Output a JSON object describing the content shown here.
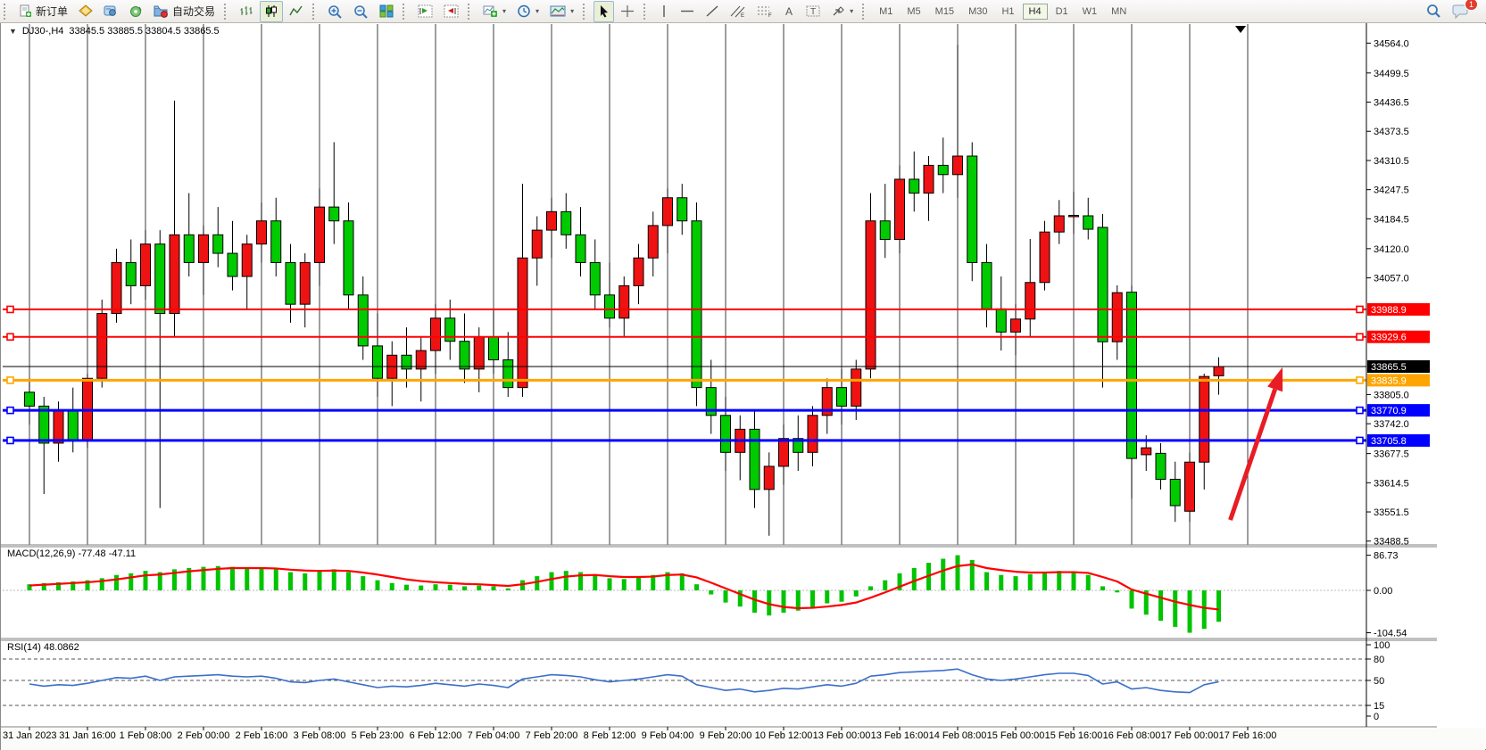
{
  "toolbar": {
    "new_order_label": "新订单",
    "auto_trading_label": "自动交易",
    "timeframes": [
      "M1",
      "M5",
      "M15",
      "M30",
      "H1",
      "H4",
      "D1",
      "W1",
      "MN"
    ],
    "active_timeframe": "H4",
    "notification_count": "1"
  },
  "chart_header": {
    "symbol_period": "DJ30-,H4",
    "ohlc": "33845.5 33885.5 33804.5 33865.5"
  },
  "chart_data": {
    "type": "candlestick",
    "symbol": "DJ30-",
    "timeframe": "H4",
    "colors": {
      "up": "#ef1212",
      "down": "#00ca00",
      "wick": "#000000",
      "grid": "#3c3c3c",
      "macd_hist": "#00c400",
      "macd_signal": "#ff0000",
      "rsi_line": "#3b6fc9",
      "arrow": "#e81c24",
      "line_red": "#ff0000",
      "line_blue": "#0000ff",
      "line_orange": "#ffa500",
      "line_black": "#000000"
    },
    "price_axis_ticks": [
      "34564.0",
      "34499.5",
      "34436.5",
      "34373.5",
      "34310.5",
      "34247.5",
      "34184.5",
      "34120.0",
      "34057.0",
      "33805.0",
      "33742.0",
      "33677.5",
      "33614.5",
      "33551.5",
      "33488.5"
    ],
    "horizontal_lines": [
      {
        "price": 33988.9,
        "label": "33988.9",
        "color": "#ff0000",
        "width": 2
      },
      {
        "price": 33929.6,
        "label": "33929.6",
        "color": "#ff0000",
        "width": 2
      },
      {
        "price": 33865.5,
        "label": "33865.5",
        "color": "#000000",
        "width": 1
      },
      {
        "price": 33835.9,
        "label": "33835.9",
        "color": "#ffa500",
        "width": 3
      },
      {
        "price": 33770.9,
        "label": "33770.9",
        "color": "#0000ff",
        "width": 3
      },
      {
        "price": 33705.8,
        "label": "33705.8",
        "color": "#0000ff",
        "width": 3
      }
    ],
    "time_labels": [
      "31 Jan 2023",
      "31 Jan 16:00",
      "1 Feb 08:00",
      "2 Feb 00:00",
      "2 Feb 16:00",
      "3 Feb 08:00",
      "5 Feb 23:00",
      "6 Feb 12:00",
      "7 Feb 04:00",
      "7 Feb 20:00",
      "8 Feb 12:00",
      "9 Feb 04:00",
      "9 Feb 20:00",
      "10 Feb 12:00",
      "13 Feb 00:00",
      "13 Feb 16:00",
      "14 Feb 08:00",
      "15 Feb 00:00",
      "15 Feb 16:00",
      "16 Feb 08:00",
      "17 Feb 00:00",
      "17 Feb 16:00"
    ],
    "candles": [
      [
        33810,
        33840,
        33740,
        33780
      ],
      [
        33780,
        33800,
        33590,
        33700
      ],
      [
        33700,
        33790,
        33660,
        33770
      ],
      [
        33770,
        33820,
        33680,
        33705
      ],
      [
        33705,
        33850,
        33690,
        33840
      ],
      [
        33840,
        34010,
        33820,
        33980
      ],
      [
        33980,
        34120,
        33960,
        34090
      ],
      [
        34090,
        34140,
        34000,
        34040
      ],
      [
        34040,
        34160,
        34010,
        34130
      ],
      [
        34130,
        34160,
        33560,
        33980
      ],
      [
        33980,
        34440,
        33930,
        34150
      ],
      [
        34150,
        34240,
        34060,
        34090
      ],
      [
        34090,
        34170,
        34020,
        34150
      ],
      [
        34150,
        34210,
        34080,
        34110
      ],
      [
        34110,
        34180,
        34030,
        34060
      ],
      [
        34060,
        34150,
        33990,
        34130
      ],
      [
        34130,
        34220,
        34090,
        34180
      ],
      [
        34180,
        34230,
        34060,
        34090
      ],
      [
        34090,
        34130,
        33960,
        34000
      ],
      [
        34000,
        34110,
        33950,
        34090
      ],
      [
        34090,
        34250,
        34040,
        34210
      ],
      [
        34210,
        34350,
        34130,
        34180
      ],
      [
        34180,
        34220,
        33990,
        34020
      ],
      [
        34020,
        34060,
        33880,
        33910
      ],
      [
        33910,
        33980,
        33800,
        33840
      ],
      [
        33840,
        33920,
        33780,
        33890
      ],
      [
        33890,
        33950,
        33820,
        33860
      ],
      [
        33860,
        33930,
        33790,
        33900
      ],
      [
        33900,
        34000,
        33850,
        33970
      ],
      [
        33970,
        34010,
        33880,
        33920
      ],
      [
        33920,
        33980,
        33830,
        33860
      ],
      [
        33860,
        33950,
        33810,
        33930
      ],
      [
        33930,
        33990,
        33850,
        33880
      ],
      [
        33880,
        33940,
        33800,
        33820
      ],
      [
        33820,
        34260,
        33800,
        34100
      ],
      [
        34100,
        34190,
        34040,
        34160
      ],
      [
        34160,
        34230,
        34100,
        34200
      ],
      [
        34200,
        34240,
        34120,
        34150
      ],
      [
        34150,
        34210,
        34060,
        34090
      ],
      [
        34090,
        34140,
        33990,
        34020
      ],
      [
        34020,
        34090,
        33950,
        33970
      ],
      [
        33970,
        34060,
        33930,
        34040
      ],
      [
        34040,
        34130,
        34000,
        34100
      ],
      [
        34100,
        34200,
        34060,
        34170
      ],
      [
        34170,
        34250,
        34110,
        34230
      ],
      [
        34230,
        34260,
        34150,
        34180
      ],
      [
        34180,
        34220,
        33780,
        33820
      ],
      [
        33820,
        33880,
        33720,
        33760
      ],
      [
        33760,
        33800,
        33640,
        33680
      ],
      [
        33680,
        33760,
        33620,
        33730
      ],
      [
        33730,
        33770,
        33560,
        33600
      ],
      [
        33600,
        33680,
        33500,
        33650
      ],
      [
        33650,
        33740,
        33610,
        33710
      ],
      [
        33710,
        33760,
        33640,
        33680
      ],
      [
        33680,
        33780,
        33650,
        33760
      ],
      [
        33760,
        33840,
        33720,
        33820
      ],
      [
        33820,
        33860,
        33740,
        33780
      ],
      [
        33780,
        33880,
        33750,
        33860
      ],
      [
        33860,
        34240,
        33840,
        34180
      ],
      [
        34180,
        34260,
        34100,
        34140
      ],
      [
        34140,
        34300,
        34110,
        34270
      ],
      [
        34270,
        34330,
        34200,
        34240
      ],
      [
        34240,
        34320,
        34180,
        34300
      ],
      [
        34300,
        34360,
        34240,
        34280
      ],
      [
        34280,
        34560,
        34230,
        34320
      ],
      [
        34320,
        34350,
        34050,
        34090
      ],
      [
        34090,
        34130,
        33950,
        33990
      ],
      [
        33990,
        34060,
        33900,
        33940
      ],
      [
        33940,
        34000,
        33890,
        33968
      ],
      [
        33968,
        34141,
        33930,
        34047
      ],
      [
        34047,
        34180,
        34030,
        34156
      ],
      [
        34156,
        34225,
        34130,
        34191
      ],
      [
        34191,
        34243,
        34152,
        34192
      ],
      [
        34191,
        34230,
        34140,
        34162
      ],
      [
        34166,
        34195,
        33820,
        33919
      ],
      [
        33919,
        34041,
        33880,
        34025
      ],
      [
        34026,
        34040,
        33580,
        33667
      ],
      [
        33675,
        33717,
        33640,
        33690
      ],
      [
        33678,
        33700,
        33600,
        33622
      ],
      [
        33622,
        33660,
        33530,
        33565
      ],
      [
        33553,
        33680,
        33530,
        33659
      ],
      [
        33659,
        33850,
        33600,
        33844
      ],
      [
        33845.5,
        33885.5,
        33804.5,
        33865.5
      ]
    ],
    "macd": {
      "label": "MACD(12,26,9) -77.48 -47.11",
      "scale_labels": [
        "86.73",
        "0.00",
        "-104.54"
      ],
      "scale_values": [
        86.73,
        0,
        -104.54
      ],
      "histogram": [
        15,
        18,
        20,
        22,
        25,
        30,
        38,
        42,
        48,
        45,
        52,
        55,
        58,
        60,
        58,
        55,
        56,
        52,
        45,
        42,
        48,
        52,
        45,
        35,
        25,
        18,
        14,
        12,
        15,
        14,
        10,
        12,
        10,
        5,
        25,
        35,
        45,
        48,
        45,
        38,
        30,
        28,
        32,
        38,
        45,
        42,
        15,
        -10,
        -30,
        -40,
        -55,
        -62,
        -55,
        -50,
        -42,
        -32,
        -28,
        -15,
        10,
        25,
        42,
        55,
        68,
        78,
        86.73,
        75,
        45,
        38,
        35,
        40,
        45,
        48,
        46,
        38,
        10,
        -5,
        -45,
        -60,
        -75,
        -90,
        -104.54,
        -95,
        -77.48
      ],
      "signal": [
        12,
        14,
        16,
        18,
        20,
        23,
        27,
        32,
        37,
        39,
        43,
        47,
        50,
        53,
        55,
        55,
        55,
        54,
        51,
        49,
        48,
        49,
        48,
        44,
        39,
        33,
        27,
        23,
        20,
        18,
        16,
        15,
        13,
        11,
        15,
        21,
        28,
        34,
        37,
        38,
        35,
        33,
        33,
        34,
        38,
        39,
        32,
        19,
        5,
        -9,
        -23,
        -34,
        -41,
        -44,
        -43,
        -40,
        -36,
        -30,
        -18,
        -5,
        9,
        23,
        36,
        49,
        60,
        64,
        55,
        50,
        46,
        44,
        44,
        45,
        45,
        43,
        33,
        22,
        2,
        -8,
        -18,
        -28,
        -36,
        -43,
        -47.11
      ]
    },
    "rsi": {
      "label": "RSI(14) 48.0862",
      "scale_labels": [
        "100",
        "80",
        "50",
        "15",
        "0"
      ],
      "scale_values": [
        100,
        80,
        50,
        15,
        0
      ],
      "levels": [
        80,
        50,
        15
      ],
      "values": [
        45,
        42,
        44,
        43,
        46,
        50,
        54,
        53,
        56,
        50,
        55,
        56,
        57,
        58,
        56,
        55,
        56,
        53,
        48,
        47,
        50,
        52,
        48,
        44,
        40,
        42,
        41,
        43,
        46,
        44,
        42,
        45,
        43,
        40,
        52,
        55,
        58,
        57,
        55,
        51,
        48,
        50,
        52,
        55,
        58,
        56,
        44,
        40,
        36,
        38,
        34,
        36,
        39,
        38,
        41,
        44,
        42,
        46,
        56,
        58,
        61,
        62,
        63,
        64,
        66,
        58,
        52,
        50,
        52,
        55,
        58,
        60,
        60,
        57,
        45,
        48,
        38,
        40,
        36,
        34,
        33,
        44,
        48.09
      ]
    },
    "arrow_annotation": {
      "bar_from": 82.8,
      "price_from": 33534,
      "bar_to": 86.4,
      "price_to": 33864
    }
  }
}
